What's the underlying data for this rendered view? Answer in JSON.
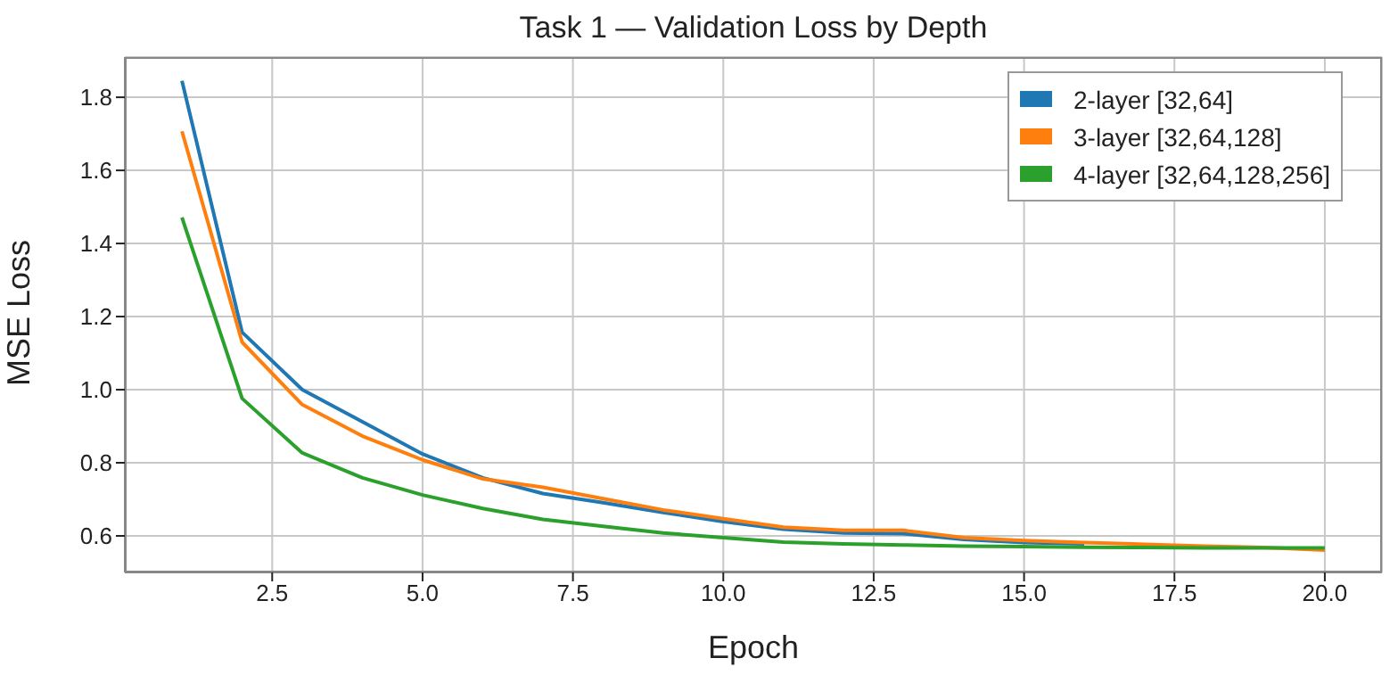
{
  "chart_data": {
    "type": "line",
    "title": "Task 1 — Validation Loss by Depth",
    "xlabel": "Epoch",
    "ylabel": "MSE Loss",
    "x": [
      1,
      2,
      3,
      4,
      5,
      6,
      7,
      8,
      9,
      10,
      11,
      12,
      13,
      14,
      15,
      16,
      17,
      18,
      19,
      20
    ],
    "series": [
      {
        "name": "2-layer [32,64]",
        "color": "#1f77b4",
        "values": [
          1.845,
          1.157,
          1.0,
          0.912,
          0.824,
          0.759,
          0.716,
          0.691,
          0.664,
          0.639,
          0.618,
          0.608,
          0.606,
          0.59,
          0.582,
          0.578,
          null,
          null,
          null,
          null
        ]
      },
      {
        "name": "3-layer [32,64,128]",
        "color": "#ff7f0e",
        "values": [
          1.707,
          1.13,
          0.959,
          0.873,
          0.808,
          0.756,
          0.733,
          0.702,
          0.671,
          0.647,
          0.624,
          0.615,
          0.615,
          0.595,
          0.587,
          0.582,
          0.577,
          0.572,
          0.568,
          0.561
        ]
      },
      {
        "name": "4-layer [32,64,128,256]",
        "color": "#2ca02c",
        "values": [
          1.471,
          0.976,
          0.827,
          0.759,
          0.712,
          0.675,
          0.645,
          0.626,
          0.608,
          0.595,
          0.583,
          0.578,
          0.575,
          0.572,
          0.571,
          0.569,
          0.568,
          0.567,
          0.567,
          0.567
        ]
      }
    ],
    "xlim": [
      0.05,
      20.95
    ],
    "xticks": [
      {
        "value": 2.5,
        "label": "2.5"
      },
      {
        "value": 5,
        "label": "5.0"
      },
      {
        "value": 7.5,
        "label": "7.5"
      },
      {
        "value": 10,
        "label": "10.0"
      },
      {
        "value": 12.5,
        "label": "12.5"
      },
      {
        "value": 15,
        "label": "15.0"
      },
      {
        "value": 17.5,
        "label": "17.5"
      },
      {
        "value": 20,
        "label": "20.0"
      }
    ],
    "ylim": [
      0.5,
      1.91
    ],
    "yticks": [
      0.6,
      0.8,
      {
        "value": 1,
        "label": "1.0"
      },
      1.2,
      1.4,
      1.6,
      1.8
    ],
    "grid": true,
    "legend": "top right",
    "marker": "none",
    "line_style": "solid"
  }
}
